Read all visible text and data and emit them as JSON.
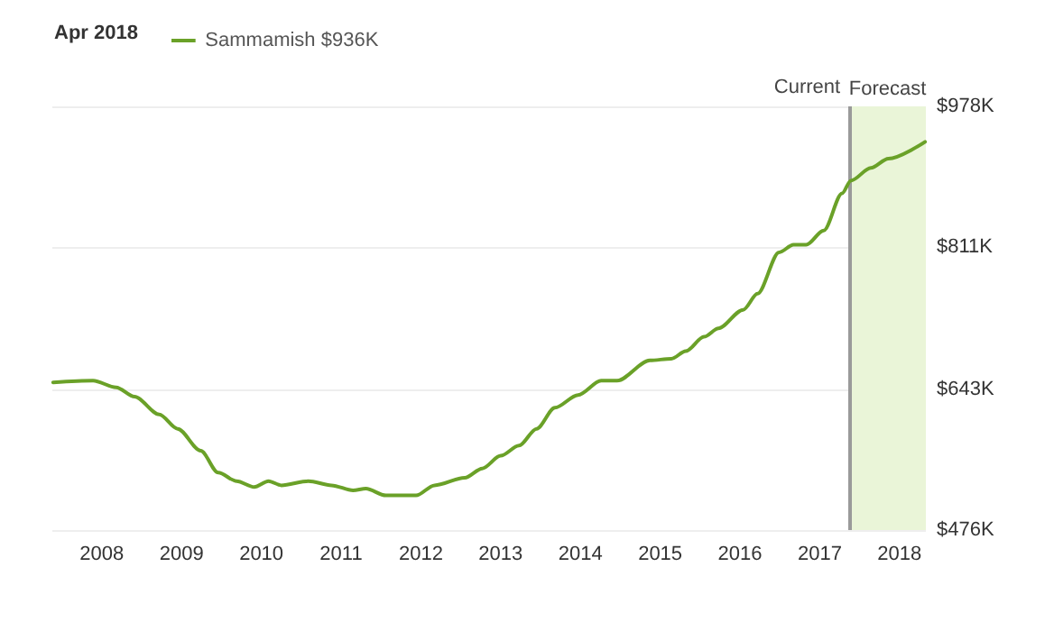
{
  "chart_data": {
    "type": "line",
    "legend_title": "Apr 2018",
    "legend": "top left",
    "grid": "y",
    "marker": "none",
    "x": [
      2007.39,
      2007.89,
      2008.18,
      2008.41,
      2008.72,
      2008.95,
      2009.24,
      2009.46,
      2009.69,
      2009.91,
      2010.09,
      2010.25,
      2010.59,
      2010.88,
      2011.15,
      2011.31,
      2011.56,
      2011.83,
      2011.94,
      2012.17,
      2012.55,
      2012.77,
      2013.0,
      2013.23,
      2013.45,
      2013.68,
      2013.97,
      2014.26,
      2014.46,
      2014.87,
      2015.14,
      2015.32,
      2015.55,
      2015.73,
      2016.04,
      2016.22,
      2016.49,
      2016.67,
      2016.83,
      2017.05,
      2017.28,
      2017.39,
      2017.64,
      2017.86,
      2018.32
    ],
    "series": [
      {
        "name": "Sammamish $936K",
        "color": "#6aa128",
        "values": [
          651,
          653,
          645,
          634,
          613,
          596,
          570,
          544,
          534,
          527,
          534,
          529,
          534,
          529,
          523,
          525,
          517,
          517,
          517,
          529,
          538,
          549,
          564,
          576,
          596,
          621,
          636,
          653,
          653,
          677,
          679,
          688,
          705,
          715,
          737,
          756,
          805,
          814,
          814,
          831,
          875,
          890,
          905,
          916,
          936
        ]
      }
    ],
    "xlim": [
      2007.38,
      2018.33
    ],
    "xticks": [
      2008,
      2009,
      2010,
      2011,
      2012,
      2013,
      2014,
      2015,
      2016,
      2017,
      2018
    ],
    "ylim": [
      476,
      978
    ],
    "yticks": [
      {
        "value": 476,
        "label": "$476K"
      },
      {
        "value": 643,
        "label": "$643K"
      },
      {
        "value": 811,
        "label": "$811K"
      },
      {
        "value": 978,
        "label": "$978K"
      }
    ],
    "ref_lines": [
      {
        "axis": "x",
        "value": 2017.37,
        "label": "Current",
        "color": "#9a9a9a"
      }
    ],
    "bands": [
      {
        "axis": "x",
        "from": 2017.37,
        "to": 2018.33,
        "label": "Forecast",
        "color": "#eaf5d8"
      }
    ]
  }
}
